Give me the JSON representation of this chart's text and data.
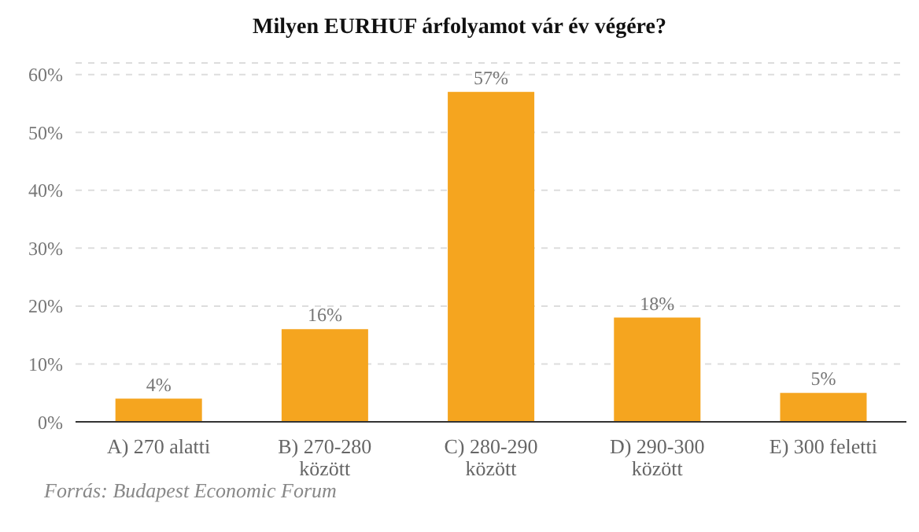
{
  "chart_data": {
    "type": "bar",
    "title": "Milyen EURHUF árfolyamot vár év végére?",
    "categories": [
      "A) 270 alatti",
      "B) 270-280 között",
      "C) 280-290 között",
      "D) 290-300 között",
      "E) 300 feletti"
    ],
    "values": [
      4,
      16,
      57,
      18,
      5
    ],
    "value_labels": [
      "4%",
      "16%",
      "57%",
      "18%",
      "5%"
    ],
    "color": "#f5a51f",
    "ylim": [
      0,
      62
    ],
    "yticks": [
      {
        "value": 0,
        "label": "0%"
      },
      {
        "value": 10,
        "label": "10%"
      },
      {
        "value": 20,
        "label": "20%"
      },
      {
        "value": 30,
        "label": "30%"
      },
      {
        "value": 40,
        "label": "40%"
      },
      {
        "value": 50,
        "label": "50%"
      },
      {
        "value": 60,
        "label": "60%"
      }
    ],
    "grid": "y",
    "annotations": [
      "Forrás: Budapest Economic Forum"
    ]
  }
}
